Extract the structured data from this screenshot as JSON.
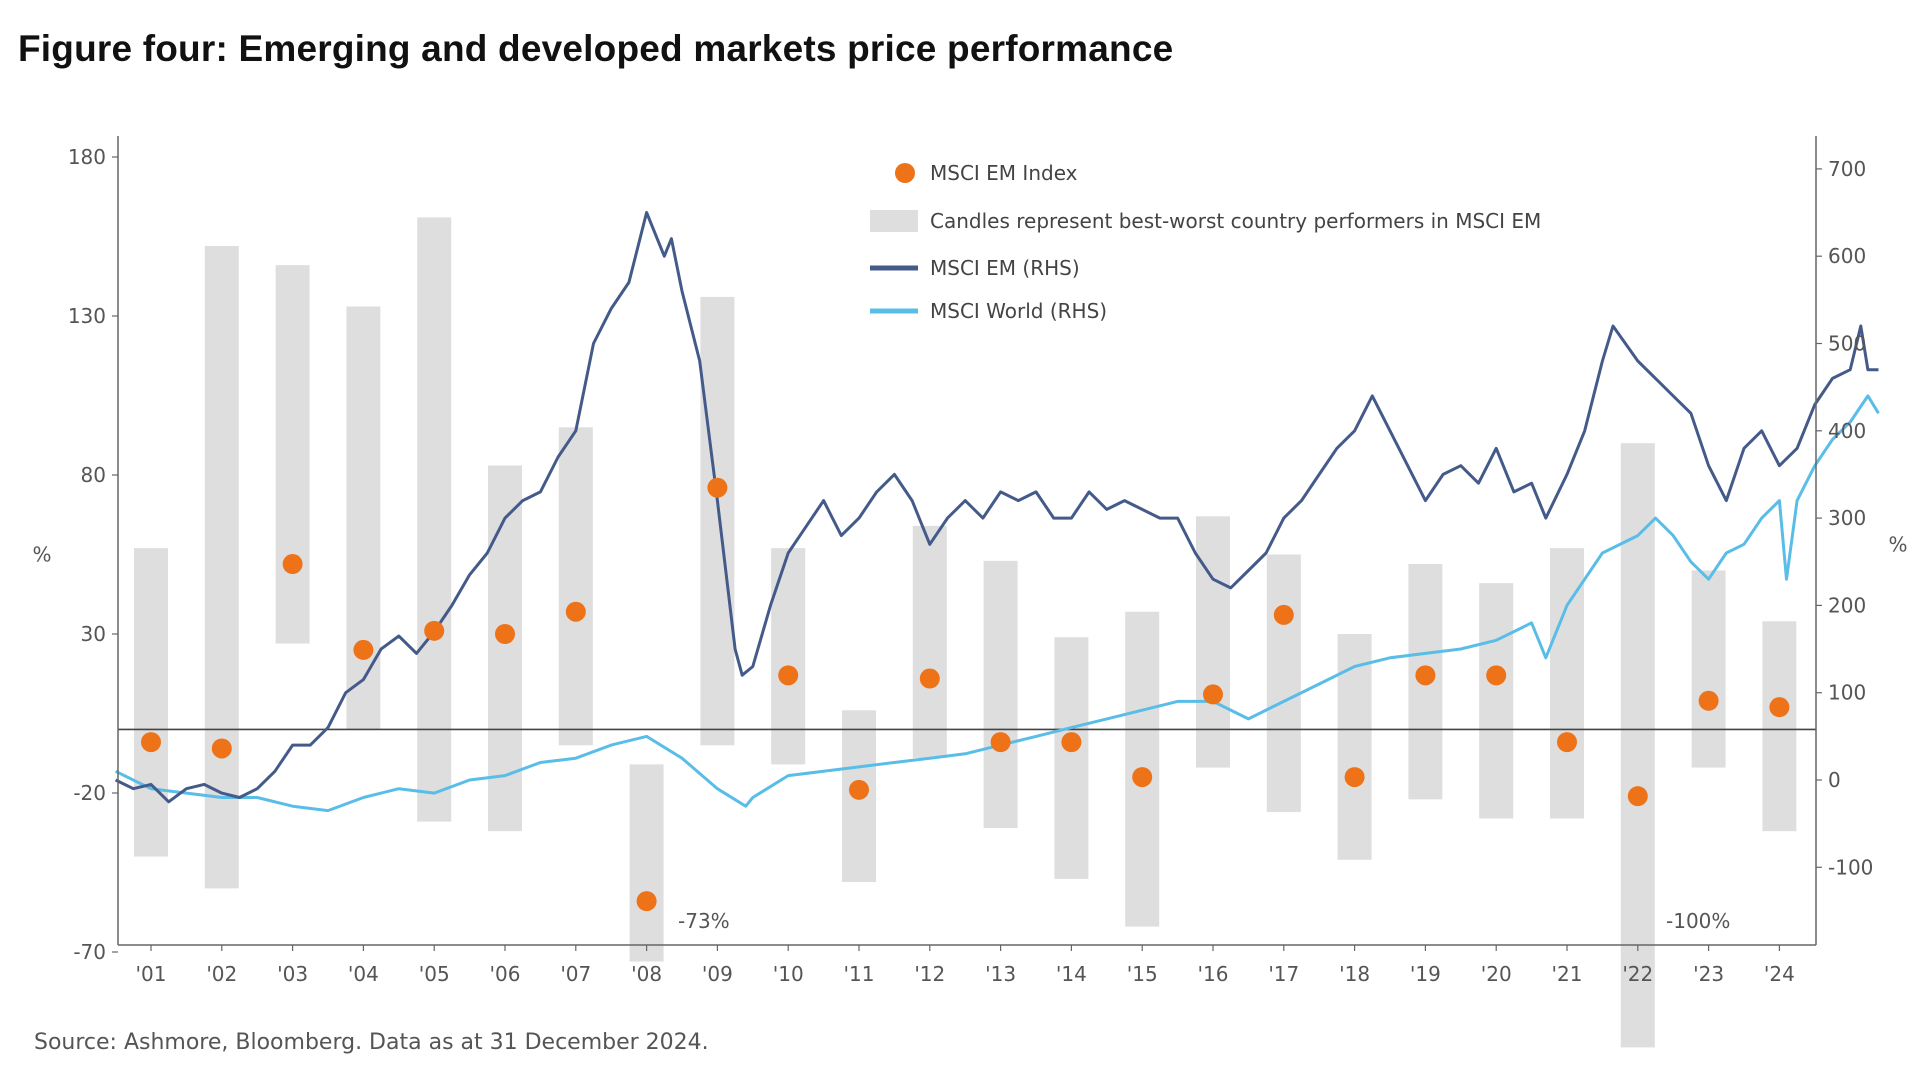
{
  "title": "Figure four: Emerging and developed markets price performance",
  "source": "Source: Ashmore, Bloomberg. Data as at 31 December 2024.",
  "chart_data": {
    "type": "candlestick-scatter-line",
    "categories": [
      "'01",
      "'02",
      "'03",
      "'04",
      "'05",
      "'06",
      "'07",
      "'08",
      "'09",
      "'10",
      "'11",
      "'12",
      "'13",
      "'14",
      "'15",
      "'16",
      "'17",
      "'18",
      "'19",
      "'20",
      "'21",
      "'22",
      "'23",
      "'24"
    ],
    "y_left": {
      "label": "%",
      "ticks": [
        "180",
        "130",
        "80",
        "30",
        "-20",
        "-70"
      ],
      "range": [
        -70,
        180
      ]
    },
    "y_right": {
      "label": "%",
      "ticks": [
        "700",
        "600",
        "500",
        "400",
        "300",
        "200",
        "100",
        "0",
        "-100"
      ],
      "range": [
        -190,
        720
      ]
    },
    "legend": {
      "msci_em_index": "MSCI EM Index",
      "candles": "Candles represent best-worst country performers in MSCI EM",
      "msci_em_rhs": "MSCI EM (RHS)",
      "msci_world_rhs": "MSCI World (RHS)"
    },
    "colors": {
      "dot": "#ee7318",
      "candle": "#dedede",
      "em_line": "#445b8a",
      "world_line": "#59bde8",
      "zero_line": "#444444"
    },
    "candles": [
      {
        "year": "'01",
        "high": 57,
        "low": -40
      },
      {
        "year": "'02",
        "high": 152,
        "low": -50
      },
      {
        "year": "'03",
        "high": 146,
        "low": 27
      },
      {
        "year": "'04",
        "high": 133,
        "low": 0
      },
      {
        "year": "'05",
        "high": 161,
        "low": -29
      },
      {
        "year": "'06",
        "high": 83,
        "low": -32
      },
      {
        "year": "'07",
        "high": 95,
        "low": -5
      },
      {
        "year": "'08",
        "high": -11,
        "low": -73
      },
      {
        "year": "'09",
        "high": 136,
        "low": -5
      },
      {
        "year": "'10",
        "high": 57,
        "low": -11
      },
      {
        "year": "'11",
        "high": 6,
        "low": -48
      },
      {
        "year": "'12",
        "high": 64,
        "low": -9
      },
      {
        "year": "'13",
        "high": 53,
        "low": -31
      },
      {
        "year": "'14",
        "high": 29,
        "low": -47
      },
      {
        "year": "'15",
        "high": 37,
        "low": -62
      },
      {
        "year": "'16",
        "high": 67,
        "low": -12
      },
      {
        "year": "'17",
        "high": 55,
        "low": -26
      },
      {
        "year": "'18",
        "high": 30,
        "low": -41
      },
      {
        "year": "'19",
        "high": 52,
        "low": -22
      },
      {
        "year": "'20",
        "high": 46,
        "low": -28
      },
      {
        "year": "'21",
        "high": 57,
        "low": -28
      },
      {
        "year": "'22",
        "high": 90,
        "low": -100
      },
      {
        "year": "'23",
        "high": 50,
        "low": -12
      },
      {
        "year": "'24",
        "high": 34,
        "low": -32
      }
    ],
    "msci_em_index_pct": [
      -4,
      -6,
      52,
      25,
      31,
      30,
      37,
      -54,
      76,
      17,
      -19,
      16,
      -4,
      -4,
      -15,
      11,
      36,
      -15,
      17,
      17,
      -4,
      -21,
      9,
      7
    ],
    "annotations": [
      "-73%",
      "-100%"
    ],
    "msci_em_rhs": {
      "x": [
        2000.0,
        2000.25,
        2000.5,
        2000.75,
        2001.0,
        2001.25,
        2001.5,
        2001.75,
        2002.0,
        2002.25,
        2002.5,
        2002.75,
        2003.0,
        2003.25,
        2003.5,
        2003.75,
        2004.0,
        2004.25,
        2004.5,
        2004.75,
        2005.0,
        2005.25,
        2005.5,
        2005.75,
        2006.0,
        2006.25,
        2006.5,
        2006.75,
        2007.0,
        2007.25,
        2007.5,
        2007.75,
        2007.85,
        2008.0,
        2008.25,
        2008.5,
        2008.75,
        2008.85,
        2009.0,
        2009.25,
        2009.5,
        2009.75,
        2010.0,
        2010.25,
        2010.5,
        2010.75,
        2011.0,
        2011.25,
        2011.5,
        2011.75,
        2012.0,
        2012.25,
        2012.5,
        2012.75,
        2013.0,
        2013.25,
        2013.5,
        2013.75,
        2014.0,
        2014.25,
        2014.5,
        2014.75,
        2015.0,
        2015.25,
        2015.5,
        2015.75,
        2016.0,
        2016.25,
        2016.5,
        2016.75,
        2017.0,
        2017.25,
        2017.5,
        2017.75,
        2018.0,
        2018.25,
        2018.5,
        2018.75,
        2019.0,
        2019.25,
        2019.5,
        2019.75,
        2020.0,
        2020.2,
        2020.5,
        2020.75,
        2021.0,
        2021.15,
        2021.5,
        2021.75,
        2022.0,
        2022.25,
        2022.5,
        2022.75,
        2023.0,
        2023.25,
        2023.5,
        2023.75,
        2024.0,
        2024.25,
        2024.5,
        2024.65,
        2024.75,
        2024.9
      ],
      "y": [
        0,
        -10,
        -5,
        -25,
        -10,
        -5,
        -15,
        -20,
        -10,
        10,
        40,
        40,
        60,
        100,
        115,
        150,
        165,
        145,
        170,
        200,
        235,
        260,
        300,
        320,
        330,
        370,
        400,
        500,
        540,
        570,
        650,
        600,
        620,
        560,
        480,
        320,
        150,
        120,
        130,
        200,
        260,
        290,
        320,
        280,
        300,
        330,
        350,
        320,
        270,
        300,
        320,
        300,
        330,
        320,
        330,
        300,
        300,
        330,
        310,
        320,
        310,
        300,
        300,
        260,
        230,
        220,
        240,
        260,
        300,
        320,
        350,
        380,
        400,
        440,
        400,
        360,
        320,
        350,
        360,
        340,
        380,
        330,
        340,
        300,
        350,
        400,
        480,
        520,
        480,
        460,
        440,
        420,
        360,
        320,
        380,
        400,
        360,
        380,
        430,
        460,
        470,
        520,
        470,
        470
      ]
    },
    "msci_world_rhs": {
      "x": [
        2000.0,
        2000.5,
        2001.0,
        2001.5,
        2002.0,
        2002.5,
        2003.0,
        2003.5,
        2004.0,
        2004.5,
        2005.0,
        2005.5,
        2006.0,
        2006.5,
        2007.0,
        2007.5,
        2008.0,
        2008.5,
        2008.9,
        2009.0,
        2009.5,
        2010.0,
        2010.5,
        2011.0,
        2011.5,
        2012.0,
        2012.5,
        2013.0,
        2013.5,
        2014.0,
        2014.5,
        2015.0,
        2015.5,
        2016.0,
        2016.5,
        2017.0,
        2017.5,
        2018.0,
        2018.5,
        2019.0,
        2019.5,
        2020.0,
        2020.2,
        2020.5,
        2020.75,
        2021.0,
        2021.5,
        2021.75,
        2022.0,
        2022.25,
        2022.5,
        2022.75,
        2023.0,
        2023.25,
        2023.5,
        2023.6,
        2023.75,
        2024.0,
        2024.25,
        2024.5,
        2024.75,
        2024.9
      ],
      "y": [
        10,
        -10,
        -15,
        -20,
        -20,
        -30,
        -35,
        -20,
        -10,
        -15,
        0,
        5,
        20,
        25,
        40,
        50,
        25,
        -10,
        -30,
        -20,
        5,
        10,
        15,
        20,
        25,
        30,
        40,
        50,
        60,
        70,
        80,
        90,
        90,
        70,
        90,
        110,
        130,
        140,
        145,
        150,
        160,
        180,
        140,
        200,
        230,
        260,
        280,
        300,
        280,
        250,
        230,
        260,
        270,
        300,
        320,
        230,
        320,
        360,
        390,
        410,
        440,
        420
      ]
    }
  }
}
